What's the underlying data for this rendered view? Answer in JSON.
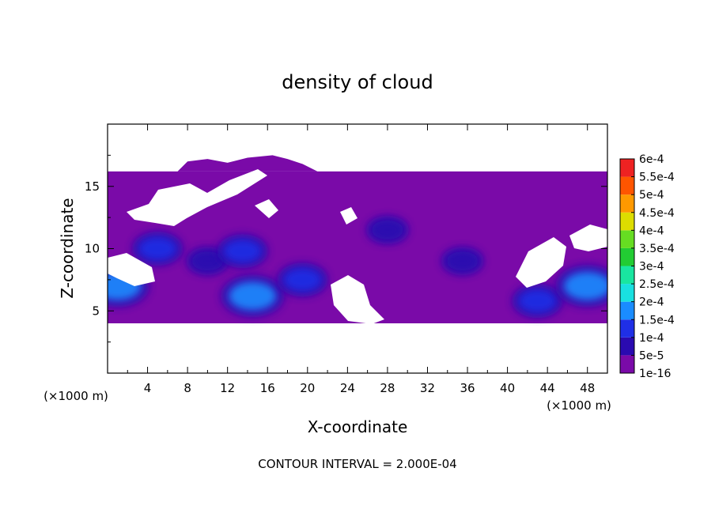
{
  "chart_data": {
    "type": "heatmap",
    "title": "density of cloud",
    "xlabel": "X-coordinate",
    "ylabel": "Z-coordinate",
    "x_unit_note": "(×1000 m)",
    "y_unit_note": "(×1000 m)",
    "xlim": [
      0,
      50
    ],
    "ylim": [
      0,
      20
    ],
    "x_ticks": [
      4,
      8,
      12,
      16,
      20,
      24,
      28,
      32,
      36,
      40,
      44,
      48
    ],
    "y_ticks": [
      5,
      10,
      15
    ],
    "colorbar": {
      "labels": [
        "1e-16",
        "5e-5",
        "1e-4",
        "1.5e-4",
        "2e-4",
        "2.5e-4",
        "3e-4",
        "3.5e-4",
        "4e-4",
        "4.5e-4",
        "5e-4",
        "5.5e-4",
        "6e-4"
      ],
      "colors": [
        "#7a0aa8",
        "#2a0ab0",
        "#1f2fe6",
        "#1a8cff",
        "#19e0e0",
        "#19e6a0",
        "#22cc33",
        "#66dd22",
        "#dddd00",
        "#ff9900",
        "#ff5500",
        "#ee2222",
        "#ff8888"
      ]
    },
    "footer": "CONTOUR INTERVAL = 2.000E-04",
    "cloud_layer": {
      "z_min": 4.0,
      "z_max": 16.2
    },
    "dense_cores": [
      {
        "x": 1.0,
        "z": 7.0,
        "level": 0.00015
      },
      {
        "x": 5.0,
        "z": 10.0,
        "level": 0.0001
      },
      {
        "x": 10.0,
        "z": 9.0,
        "level": 5e-05
      },
      {
        "x": 14.5,
        "z": 6.2,
        "level": 0.00015
      },
      {
        "x": 13.5,
        "z": 9.8,
        "level": 0.0001
      },
      {
        "x": 19.5,
        "z": 7.5,
        "level": 0.0001
      },
      {
        "x": 28.0,
        "z": 11.5,
        "level": 5e-05
      },
      {
        "x": 35.5,
        "z": 9.0,
        "level": 5e-05
      },
      {
        "x": 43.0,
        "z": 5.8,
        "level": 0.0001
      },
      {
        "x": 48.0,
        "z": 7.0,
        "level": 0.00015
      }
    ]
  }
}
